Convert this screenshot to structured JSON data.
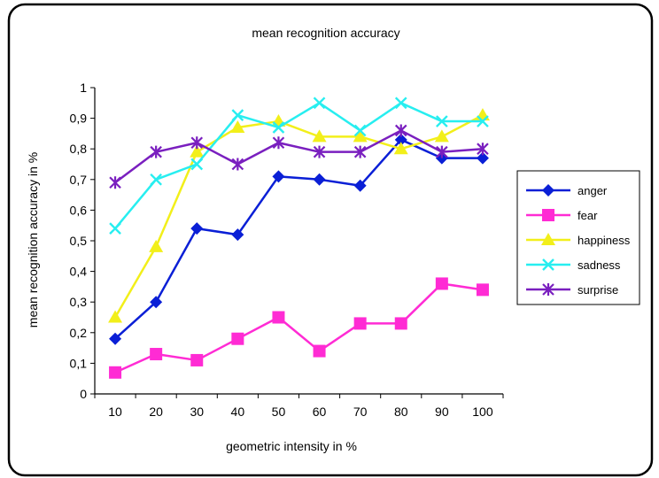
{
  "chart_data": {
    "type": "line",
    "title": "mean recognition accuracy",
    "xlabel": "geometric intensity in %",
    "ylabel": "mean recognition accuracy in %",
    "categories": [
      "10",
      "20",
      "30",
      "40",
      "50",
      "60",
      "70",
      "80",
      "90",
      "100"
    ],
    "ylim": [
      0,
      1
    ],
    "yticks": [
      "0",
      "0,1",
      "0,2",
      "0,3",
      "0,4",
      "0,5",
      "0,6",
      "0,7",
      "0,8",
      "0,9",
      "1"
    ],
    "grid": false,
    "legend_position": "right",
    "series": [
      {
        "name": "anger",
        "color": "#0a1fd6",
        "marker": "diamond",
        "values": [
          0.18,
          0.3,
          0.54,
          0.52,
          0.71,
          0.7,
          0.68,
          0.83,
          0.77,
          0.77
        ]
      },
      {
        "name": "fear",
        "color": "#ff2bd4",
        "marker": "square",
        "values": [
          0.07,
          0.13,
          0.11,
          0.18,
          0.25,
          0.14,
          0.23,
          0.23,
          0.36,
          0.34
        ]
      },
      {
        "name": "happiness",
        "color": "#f2ef1a",
        "marker": "triangle",
        "values": [
          0.25,
          0.48,
          0.79,
          0.87,
          0.89,
          0.84,
          0.84,
          0.8,
          0.84,
          0.91
        ]
      },
      {
        "name": "sadness",
        "color": "#27eef0",
        "marker": "x",
        "values": [
          0.54,
          0.7,
          0.75,
          0.91,
          0.87,
          0.95,
          0.86,
          0.95,
          0.89,
          0.89
        ]
      },
      {
        "name": "surprise",
        "color": "#7a1fbf",
        "marker": "asterisk",
        "values": [
          0.69,
          0.79,
          0.82,
          0.75,
          0.82,
          0.79,
          0.79,
          0.86,
          0.79,
          0.8
        ]
      }
    ]
  }
}
